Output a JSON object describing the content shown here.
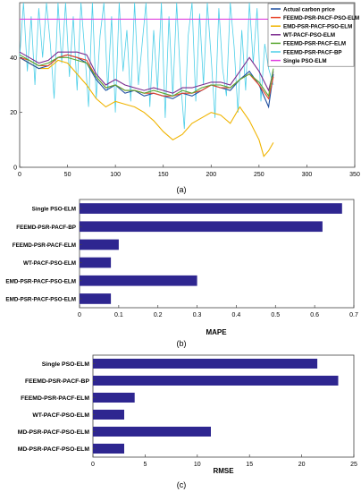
{
  "chart_data": [
    {
      "type": "line",
      "caption": "(a)",
      "xlim": [
        0,
        350
      ],
      "ylim": [
        0,
        60
      ],
      "xticks": [
        0,
        50,
        100,
        150,
        200,
        250,
        300,
        350
      ],
      "yticks": [
        0,
        20,
        40
      ],
      "grid": false,
      "legend_position": "top-right",
      "series": [
        {
          "name": "Actual carbon price",
          "color": "#1f4fa0",
          "x": [
            0,
            10,
            20,
            30,
            40,
            50,
            60,
            70,
            80,
            90,
            100,
            110,
            120,
            130,
            140,
            150,
            160,
            170,
            180,
            190,
            200,
            210,
            220,
            230,
            240,
            250,
            260,
            265
          ],
          "y": [
            40,
            38,
            36,
            37,
            40,
            41,
            40,
            38,
            32,
            28,
            30,
            27,
            28,
            26,
            27,
            26,
            25,
            27,
            26,
            28,
            30,
            29,
            28,
            32,
            35,
            30,
            22,
            34
          ]
        },
        {
          "name": "FEEMD-PSR-PACF-PSO-ELM",
          "color": "#e8452c",
          "x": [
            0,
            10,
            20,
            30,
            40,
            50,
            60,
            70,
            80,
            90,
            100,
            110,
            120,
            130,
            140,
            150,
            160,
            170,
            180,
            190,
            200,
            210,
            220,
            230,
            240,
            250,
            260,
            265
          ],
          "y": [
            40,
            39,
            37,
            37,
            40,
            41,
            40,
            39,
            33,
            29,
            30,
            28,
            28,
            27,
            27,
            26,
            26,
            27,
            27,
            28,
            30,
            29,
            29,
            32,
            34,
            30,
            25,
            33
          ]
        },
        {
          "name": "EMD-PSR-PACF-PSO-ELM",
          "color": "#f0b400",
          "x": [
            0,
            10,
            20,
            30,
            40,
            50,
            60,
            70,
            80,
            90,
            100,
            110,
            120,
            130,
            140,
            150,
            160,
            170,
            180,
            190,
            200,
            210,
            220,
            230,
            240,
            250,
            255,
            260,
            265
          ],
          "y": [
            40,
            38,
            36,
            36,
            39,
            38,
            34,
            30,
            25,
            22,
            24,
            23,
            22,
            20,
            17,
            13,
            10,
            12,
            16,
            18,
            20,
            19,
            16,
            22,
            17,
            10,
            4,
            6,
            9
          ]
        },
        {
          "name": "WT-PACF-PSO-ELM",
          "color": "#7b2a8e",
          "x": [
            0,
            10,
            20,
            30,
            40,
            50,
            60,
            70,
            80,
            90,
            100,
            110,
            120,
            130,
            140,
            150,
            160,
            170,
            180,
            190,
            200,
            210,
            220,
            230,
            240,
            250,
            260,
            265
          ],
          "y": [
            42,
            40,
            38,
            39,
            42,
            42,
            42,
            41,
            34,
            30,
            32,
            30,
            29,
            28,
            29,
            28,
            27,
            29,
            29,
            30,
            31,
            31,
            30,
            35,
            40,
            35,
            28,
            35
          ]
        },
        {
          "name": "FEEMD-PSR-PACF-ELM",
          "color": "#5aa832",
          "x": [
            0,
            10,
            20,
            30,
            40,
            50,
            60,
            70,
            80,
            90,
            100,
            110,
            120,
            130,
            140,
            150,
            160,
            170,
            180,
            190,
            200,
            210,
            220,
            230,
            240,
            250,
            260,
            265
          ],
          "y": [
            41,
            39,
            37,
            38,
            40,
            40,
            39,
            38,
            33,
            29,
            30,
            28,
            28,
            27,
            28,
            27,
            26,
            28,
            27,
            29,
            30,
            30,
            29,
            32,
            34,
            31,
            26,
            36
          ]
        },
        {
          "name": "FEEMD-PSR-PACF-BP",
          "color": "#4dcfe8",
          "x": [
            0,
            4,
            8,
            12,
            16,
            20,
            24,
            28,
            32,
            36,
            40,
            44,
            48,
            52,
            56,
            60,
            64,
            68,
            72,
            76,
            80,
            84,
            88,
            92,
            96,
            100,
            104,
            108,
            112,
            116,
            120,
            124,
            128,
            132,
            136,
            140,
            144,
            148,
            152,
            156,
            160,
            164,
            168,
            172,
            176,
            180,
            184,
            188,
            192,
            196,
            200,
            204,
            208,
            212,
            216,
            220,
            224,
            228,
            232,
            236,
            240,
            244,
            248,
            252,
            256,
            260,
            265
          ],
          "y": [
            40,
            60,
            35,
            55,
            30,
            58,
            40,
            60,
            45,
            25,
            60,
            38,
            60,
            33,
            55,
            28,
            60,
            42,
            22,
            60,
            25,
            48,
            60,
            28,
            55,
            20,
            60,
            35,
            50,
            24,
            60,
            30,
            45,
            60,
            22,
            50,
            28,
            60,
            18,
            55,
            26,
            60,
            32,
            14,
            48,
            60,
            24,
            56,
            30,
            60,
            40,
            18,
            58,
            36,
            26,
            60,
            44,
            20,
            50,
            28,
            60,
            38,
            58,
            24,
            45,
            36,
            30
          ]
        },
        {
          "name": "Single PSO-ELM",
          "color": "#e040e0",
          "x": [
            0,
            265
          ],
          "y": [
            54,
            54
          ]
        }
      ]
    },
    {
      "type": "bar",
      "orientation": "horizontal",
      "caption": "(b)",
      "xlabel": "MAPE",
      "xlim": [
        0,
        0.7
      ],
      "xticks": [
        "0",
        "0.1",
        "0.2",
        "0.3",
        "0.4",
        "0.5",
        "0.6",
        "0.7"
      ],
      "bar_color": "#2e2690",
      "categories": [
        "Single PSO-ELM",
        "FEEMD-PSR-PACF-BP",
        "FEEMD-PSR-PACF-ELM",
        "WT-PACF-PSO-ELM",
        "EMD-PSR-PACF-PSO-ELM",
        "EMD-PSR-PACF-PSO-ELM"
      ],
      "values": [
        0.67,
        0.62,
        0.1,
        0.08,
        0.3,
        0.08
      ]
    },
    {
      "type": "bar",
      "orientation": "horizontal",
      "caption": "(c)",
      "xlabel": "RMSE",
      "xlim": [
        0,
        25
      ],
      "xticks": [
        "0",
        "5",
        "10",
        "15",
        "20",
        "25"
      ],
      "bar_color": "#2e2690",
      "categories": [
        "Single PSO-ELM",
        "FEEMD-PSR-PACF-BP",
        "FEEMD-PSR-PACF-ELM",
        "WT-PACF-PSO-ELM",
        "MD-PSR-PACF-PSO-ELM",
        "MD-PSR-PACF-PSO-ELM"
      ],
      "values": [
        21.5,
        23.5,
        4,
        3,
        11.3,
        3
      ]
    }
  ]
}
